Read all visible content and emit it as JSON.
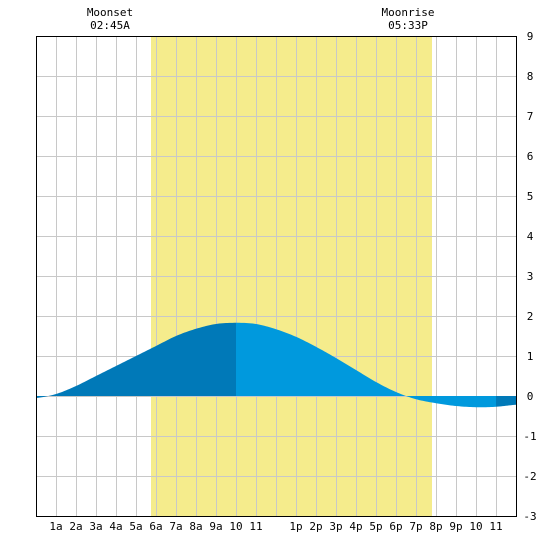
{
  "colors": {
    "background": "#ffffff",
    "daylight": "#f5ec8c",
    "grid": "#c8c8c8",
    "tide_dark": "#0079b8",
    "tide_light": "#0099dd",
    "axis": "#000000"
  },
  "moon": {
    "moonset_label": "Moonset",
    "moonset_time": "02:45A",
    "moonrise_label": "Moonrise",
    "moonrise_time": "05:33P"
  },
  "chart_data": {
    "type": "area",
    "xlim": [
      0,
      24
    ],
    "ylim": [
      -3,
      9
    ],
    "grid": true,
    "daylight_hours": [
      5.75,
      19.8
    ],
    "x_tick_labels": [
      "1a",
      "2a",
      "3a",
      "4a",
      "5a",
      "6a",
      "7a",
      "8a",
      "9a",
      "10",
      "11",
      "1p",
      "2p",
      "3p",
      "4p",
      "5p",
      "6p",
      "7p",
      "8p",
      "9p",
      "10",
      "11"
    ],
    "x_tick_hours": [
      1,
      2,
      3,
      4,
      5,
      6,
      7,
      8,
      9,
      10,
      11,
      13,
      14,
      15,
      16,
      17,
      18,
      19,
      20,
      21,
      22,
      23
    ],
    "y_ticks": [
      9,
      8,
      7,
      6,
      5,
      4,
      3,
      2,
      1,
      0,
      -1,
      -2,
      -3
    ],
    "series": [
      {
        "x": [
          0,
          1,
          2,
          3,
          4,
          5,
          6,
          7,
          8,
          9,
          10,
          11,
          12,
          13,
          14,
          15,
          16,
          17,
          18,
          19,
          20,
          21,
          22,
          23,
          24
        ],
        "values": [
          -0.05,
          0.05,
          0.25,
          0.5,
          0.75,
          1.0,
          1.25,
          1.5,
          1.68,
          1.8,
          1.83,
          1.8,
          1.67,
          1.48,
          1.23,
          0.95,
          0.65,
          0.35,
          0.1,
          -0.08,
          -0.18,
          -0.25,
          -0.28,
          -0.27,
          -0.22
        ]
      }
    ],
    "shade_changes": [
      {
        "until": 10.0,
        "color": "tide_dark"
      },
      {
        "until": 23.0,
        "color": "tide_light"
      },
      {
        "until": 24.0,
        "color": "tide_dark"
      }
    ]
  }
}
